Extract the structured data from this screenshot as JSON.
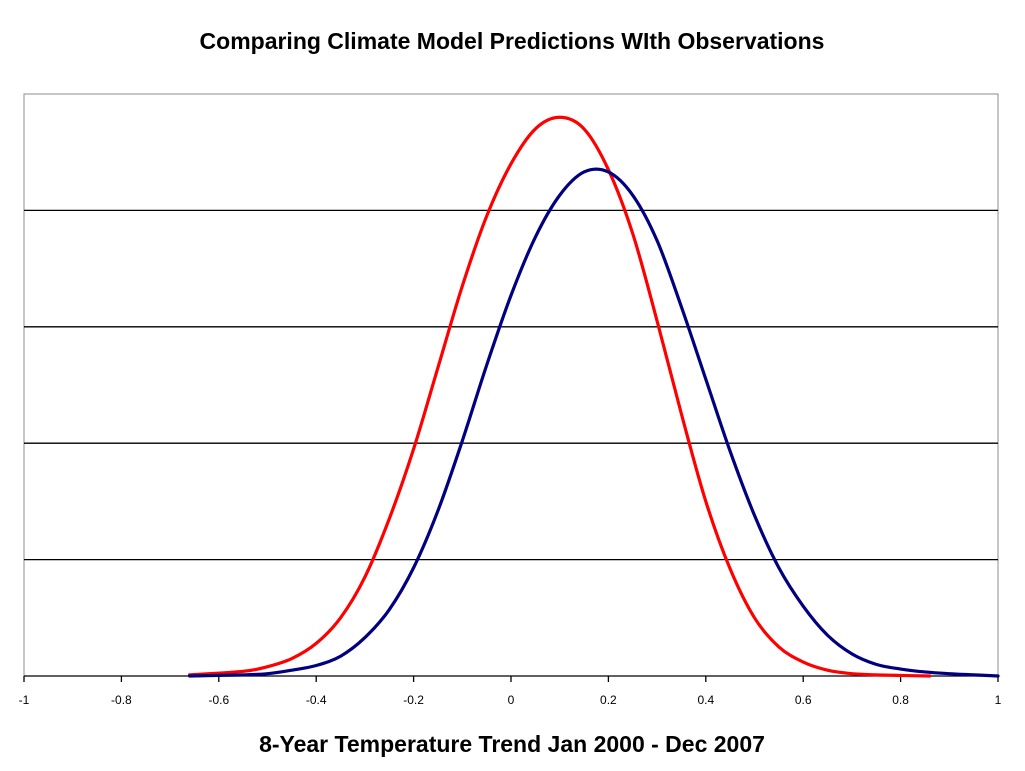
{
  "chart_data": {
    "type": "line",
    "title": "Comparing Climate Model Predictions WIth Observations",
    "xlabel": "8-Year Temperature Trend Jan 2000 - Dec 2007",
    "ylabel": "",
    "xlim": [
      -1,
      1
    ],
    "ylim": [
      0,
      5
    ],
    "x_ticks": [
      -1,
      -0.8,
      -0.6,
      -0.4,
      -0.2,
      0,
      0.2,
      0.4,
      0.6,
      0.8,
      1
    ],
    "x_tick_labels": [
      "-1",
      "-0.8",
      "-0.6",
      "-0.4",
      "-0.2",
      "0",
      "0.2",
      "0.4",
      "0.6",
      "0.8",
      "1"
    ],
    "y_gridlines": [
      1,
      2,
      3,
      4
    ],
    "grid": "horizontal",
    "legend": "none",
    "series": [
      {
        "color": "#FF0000",
        "x": [
          -0.66,
          -0.55,
          -0.5,
          -0.45,
          -0.4,
          -0.35,
          -0.3,
          -0.25,
          -0.2,
          -0.15,
          -0.1,
          -0.05,
          0,
          0.05,
          0.1,
          0.15,
          0.2,
          0.25,
          0.3,
          0.35,
          0.4,
          0.45,
          0.5,
          0.55,
          0.6,
          0.65,
          0.7,
          0.75,
          0.8,
          0.86
        ],
        "y": [
          0.01,
          0.04,
          0.08,
          0.15,
          0.28,
          0.5,
          0.85,
          1.35,
          1.95,
          2.65,
          3.35,
          3.95,
          4.4,
          4.7,
          4.8,
          4.7,
          4.35,
          3.8,
          3.05,
          2.25,
          1.5,
          0.92,
          0.5,
          0.25,
          0.12,
          0.05,
          0.02,
          0.01,
          0.005,
          0
        ]
      },
      {
        "color": "#000080",
        "x": [
          -0.66,
          -0.55,
          -0.5,
          -0.45,
          -0.4,
          -0.35,
          -0.3,
          -0.25,
          -0.2,
          -0.15,
          -0.1,
          -0.05,
          0,
          0.05,
          0.1,
          0.15,
          0.2,
          0.25,
          0.3,
          0.35,
          0.4,
          0.45,
          0.5,
          0.55,
          0.6,
          0.65,
          0.7,
          0.75,
          0.8,
          0.85,
          0.9,
          0.95,
          1.0
        ],
        "y": [
          0,
          0.01,
          0.02,
          0.05,
          0.09,
          0.17,
          0.33,
          0.57,
          0.93,
          1.42,
          2.02,
          2.67,
          3.27,
          3.77,
          4.13,
          4.33,
          4.33,
          4.13,
          3.74,
          3.17,
          2.55,
          1.93,
          1.38,
          0.93,
          0.6,
          0.35,
          0.19,
          0.1,
          0.06,
          0.035,
          0.02,
          0.01,
          0
        ]
      }
    ]
  }
}
